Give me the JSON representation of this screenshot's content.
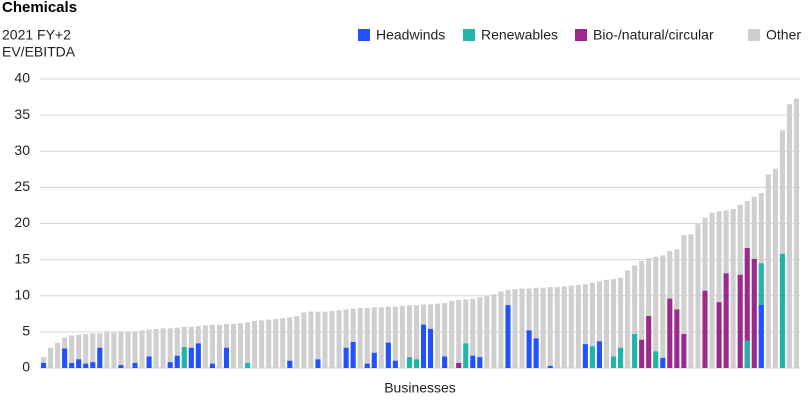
{
  "chart_data": {
    "type": "bar",
    "title": "Chemicals",
    "y_label_lines": [
      "2021 FY+2",
      "EV/EBITDA"
    ],
    "x_label": "Businesses",
    "ylim": [
      0,
      40
    ],
    "yticks": [
      0,
      5,
      10,
      15,
      20,
      25,
      30,
      35,
      40
    ],
    "grid": true,
    "legend": "top-right",
    "series": [
      {
        "name": "Other",
        "color": "#cfcfcf",
        "values": [
          1.5,
          2.8,
          3.5,
          4.2,
          4.5,
          4.6,
          4.7,
          4.8,
          4.8,
          4.9,
          4.9,
          5.0,
          5.0,
          5.0,
          5.2,
          5.3,
          5.4,
          5.5,
          5.5,
          5.6,
          5.7,
          5.7,
          5.8,
          5.9,
          6.0,
          6.0,
          6.1,
          6.1,
          6.2,
          6.3,
          6.5,
          6.6,
          6.7,
          6.8,
          6.9,
          7.0,
          7.2,
          7.7,
          7.8,
          7.8,
          7.8,
          7.9,
          8.0,
          8.1,
          8.2,
          8.3,
          8.3,
          8.4,
          8.4,
          8.5,
          8.5,
          8.6,
          8.7,
          8.7,
          8.8,
          8.8,
          8.9,
          9.0,
          9.3,
          9.4,
          9.5,
          9.6,
          9.8,
          10.0,
          10.2,
          10.6,
          10.8,
          10.9,
          11.0,
          11.0,
          11.1,
          11.1,
          11.2,
          11.2,
          11.3,
          11.4,
          11.5,
          11.6,
          11.8,
          12.0,
          12.2,
          12.3,
          12.5,
          13.5,
          14.2,
          14.8,
          15.2,
          15.4,
          15.6,
          16.2,
          16.4,
          18.4,
          18.5,
          19.9,
          20.8,
          21.5,
          21.7,
          21.8,
          22.0,
          22.6,
          23.1,
          23.7,
          24.2,
          26.8,
          27.6,
          32.9,
          36.5,
          37.3
        ]
      },
      {
        "name": "Bio-/natural/circular",
        "color": "#9b2a8c",
        "values": [
          null,
          null,
          null,
          null,
          null,
          null,
          null,
          null,
          null,
          null,
          null,
          null,
          null,
          null,
          null,
          null,
          null,
          null,
          null,
          null,
          null,
          null,
          null,
          null,
          null,
          null,
          null,
          null,
          null,
          null,
          null,
          null,
          null,
          null,
          null,
          null,
          null,
          null,
          null,
          null,
          null,
          null,
          null,
          null,
          null,
          null,
          null,
          null,
          null,
          null,
          null,
          null,
          null,
          null,
          null,
          null,
          null,
          null,
          null,
          0.7,
          null,
          null,
          null,
          null,
          null,
          null,
          null,
          null,
          null,
          null,
          null,
          null,
          null,
          null,
          null,
          null,
          null,
          null,
          null,
          null,
          null,
          null,
          null,
          null,
          null,
          3.9,
          7.2,
          null,
          null,
          9.6,
          8.1,
          4.7,
          null,
          null,
          10.7,
          null,
          9.1,
          13.1,
          null,
          12.9,
          16.6,
          15.1,
          null,
          null,
          null,
          null,
          null,
          null
        ]
      },
      {
        "name": "Renewables",
        "color": "#1fb5ab",
        "values": [
          null,
          null,
          null,
          null,
          null,
          null,
          null,
          null,
          null,
          null,
          null,
          null,
          null,
          null,
          null,
          null,
          null,
          null,
          null,
          null,
          2.9,
          null,
          null,
          null,
          null,
          null,
          null,
          null,
          null,
          0.7,
          null,
          null,
          null,
          null,
          null,
          null,
          null,
          null,
          null,
          null,
          null,
          null,
          null,
          null,
          null,
          null,
          null,
          null,
          null,
          null,
          null,
          null,
          1.5,
          1.2,
          null,
          null,
          null,
          null,
          null,
          null,
          3.4,
          null,
          null,
          null,
          null,
          null,
          null,
          null,
          null,
          null,
          null,
          null,
          null,
          null,
          null,
          null,
          null,
          null,
          3.0,
          null,
          null,
          1.6,
          2.8,
          null,
          4.7,
          null,
          null,
          2.3,
          null,
          null,
          null,
          null,
          null,
          null,
          null,
          null,
          null,
          null,
          null,
          null,
          3.8,
          null,
          14.5,
          null,
          null,
          15.8,
          null,
          null
        ]
      },
      {
        "name": "Headwinds",
        "color": "#2251ff",
        "values": [
          0.7,
          null,
          null,
          2.7,
          0.7,
          1.2,
          0.6,
          0.8,
          2.8,
          null,
          null,
          0.4,
          null,
          0.7,
          null,
          1.6,
          null,
          null,
          0.8,
          1.7,
          null,
          2.8,
          3.4,
          null,
          0.6,
          null,
          2.8,
          null,
          null,
          null,
          null,
          null,
          null,
          null,
          null,
          1.0,
          null,
          null,
          null,
          1.2,
          null,
          null,
          null,
          2.8,
          3.6,
          null,
          0.6,
          2.1,
          null,
          3.5,
          1.0,
          null,
          null,
          null,
          6.0,
          5.4,
          null,
          1.6,
          null,
          null,
          null,
          1.7,
          1.5,
          null,
          null,
          null,
          8.7,
          null,
          null,
          5.2,
          4.1,
          null,
          0.3,
          null,
          null,
          null,
          null,
          3.3,
          null,
          3.7,
          null,
          null,
          null,
          null,
          null,
          null,
          null,
          null,
          1.4,
          null,
          null,
          null,
          null,
          null,
          null,
          null,
          null,
          null,
          null,
          null,
          null,
          null,
          8.7,
          null,
          null,
          null,
          null,
          null
        ]
      }
    ]
  }
}
